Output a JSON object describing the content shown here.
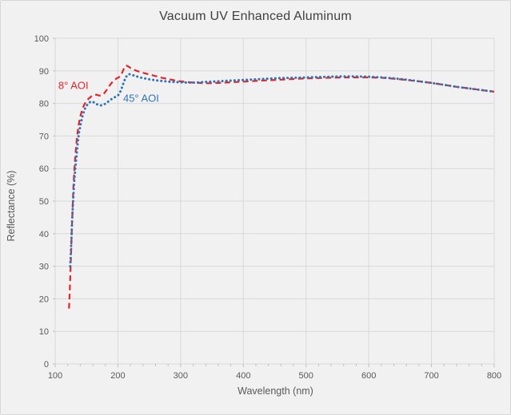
{
  "window": {
    "background": "#f1f1f2",
    "border_color": "#d7d7d7",
    "gridline_color": "#d9d9d9",
    "tick_color": "#bfbfbf",
    "title_color": "#404040",
    "label_color": "#595959"
  },
  "chart_data": {
    "type": "line",
    "title": "Vacuum UV Enhanced Aluminum",
    "xlabel": "Wavelength (nm)",
    "ylabel": "Reflectance (%)",
    "xlim": [
      100,
      800
    ],
    "ylim": [
      0,
      100
    ],
    "x_ticks": [
      100,
      200,
      300,
      400,
      500,
      600,
      700,
      800
    ],
    "x_minor_tick_step": 20,
    "y_ticks": [
      0,
      10,
      20,
      30,
      40,
      50,
      60,
      70,
      80,
      90,
      100
    ],
    "grid": true,
    "legend_position": "inline-annotations",
    "series": [
      {
        "name": "8° AOI",
        "color": "#e3242b",
        "line_style": "dashed",
        "label_anchor": {
          "x": 129,
          "y": 85.5
        },
        "points": [
          [
            122,
            17
          ],
          [
            123,
            21
          ],
          [
            124,
            26
          ],
          [
            125,
            32
          ],
          [
            126,
            38
          ],
          [
            127,
            44
          ],
          [
            128,
            49
          ],
          [
            129,
            54
          ],
          [
            131,
            61
          ],
          [
            133,
            66
          ],
          [
            135,
            70
          ],
          [
            137,
            73
          ],
          [
            140,
            76
          ],
          [
            143,
            78
          ],
          [
            146,
            79.5
          ],
          [
            150,
            80.8
          ],
          [
            154,
            81.6
          ],
          [
            158,
            82.2
          ],
          [
            162,
            82.6
          ],
          [
            166,
            82.7
          ],
          [
            170,
            82.4
          ],
          [
            174,
            82.5
          ],
          [
            178,
            83.1
          ],
          [
            182,
            84.1
          ],
          [
            186,
            85.3
          ],
          [
            190,
            86.3
          ],
          [
            194,
            87.1
          ],
          [
            198,
            87.7
          ],
          [
            202,
            88.1
          ],
          [
            205,
            88.6
          ],
          [
            208,
            90.0
          ],
          [
            211,
            91.4
          ],
          [
            214,
            91.6
          ],
          [
            217,
            91.3
          ],
          [
            220,
            90.9
          ],
          [
            225,
            90.4
          ],
          [
            230,
            90.0
          ],
          [
            235,
            89.7
          ],
          [
            240,
            89.4
          ],
          [
            250,
            88.9
          ],
          [
            260,
            88.4
          ],
          [
            270,
            87.9
          ],
          [
            280,
            87.5
          ],
          [
            290,
            87.1
          ],
          [
            300,
            86.8
          ],
          [
            310,
            86.6
          ],
          [
            320,
            86.4
          ],
          [
            330,
            86.3
          ],
          [
            340,
            86.2
          ],
          [
            350,
            86.2
          ],
          [
            360,
            86.3
          ],
          [
            370,
            86.4
          ],
          [
            380,
            86.5
          ],
          [
            390,
            86.6
          ],
          [
            400,
            86.7
          ],
          [
            420,
            86.9
          ],
          [
            440,
            87.1
          ],
          [
            460,
            87.3
          ],
          [
            480,
            87.5
          ],
          [
            500,
            87.7
          ],
          [
            520,
            87.8
          ],
          [
            540,
            87.9
          ],
          [
            560,
            88.0
          ],
          [
            580,
            88.0
          ],
          [
            600,
            88.0
          ],
          [
            620,
            87.9
          ],
          [
            640,
            87.6
          ],
          [
            660,
            87.2
          ],
          [
            680,
            86.8
          ],
          [
            700,
            86.3
          ],
          [
            720,
            85.7
          ],
          [
            740,
            85.1
          ],
          [
            760,
            84.6
          ],
          [
            780,
            84.1
          ],
          [
            800,
            83.6
          ]
        ]
      },
      {
        "name": "45° AOI",
        "color": "#2e75b6",
        "line_style": "dotted",
        "label_anchor": {
          "x": 237,
          "y": 81.5
        },
        "points": [
          [
            124,
            30
          ],
          [
            125,
            34
          ],
          [
            126,
            39
          ],
          [
            127,
            44
          ],
          [
            128,
            48
          ],
          [
            130,
            55
          ],
          [
            132,
            60
          ],
          [
            134,
            64
          ],
          [
            136,
            68
          ],
          [
            138,
            71
          ],
          [
            141,
            74
          ],
          [
            144,
            76.5
          ],
          [
            147,
            78.2
          ],
          [
            150,
            79.3
          ],
          [
            153,
            80.0
          ],
          [
            156,
            80.5
          ],
          [
            159,
            80.6
          ],
          [
            162,
            80.3
          ],
          [
            165,
            79.9
          ],
          [
            168,
            79.6
          ],
          [
            171,
            79.4
          ],
          [
            174,
            79.4
          ],
          [
            177,
            79.6
          ],
          [
            180,
            79.9
          ],
          [
            184,
            80.5
          ],
          [
            188,
            81.1
          ],
          [
            192,
            81.6
          ],
          [
            196,
            82.0
          ],
          [
            200,
            82.4
          ],
          [
            203,
            83.2
          ],
          [
            206,
            84.6
          ],
          [
            209,
            86.3
          ],
          [
            212,
            87.8
          ],
          [
            215,
            88.7
          ],
          [
            218,
            89.0
          ],
          [
            221,
            88.9
          ],
          [
            225,
            88.6
          ],
          [
            230,
            88.3
          ],
          [
            235,
            88.0
          ],
          [
            240,
            87.8
          ],
          [
            250,
            87.4
          ],
          [
            260,
            87.1
          ],
          [
            270,
            86.9
          ],
          [
            280,
            86.7
          ],
          [
            290,
            86.6
          ],
          [
            300,
            86.5
          ],
          [
            310,
            86.4
          ],
          [
            320,
            86.4
          ],
          [
            330,
            86.5
          ],
          [
            340,
            86.6
          ],
          [
            350,
            86.7
          ],
          [
            360,
            86.8
          ],
          [
            370,
            86.9
          ],
          [
            380,
            87.0
          ],
          [
            390,
            87.1
          ],
          [
            400,
            87.2
          ],
          [
            420,
            87.4
          ],
          [
            440,
            87.6
          ],
          [
            460,
            87.8
          ],
          [
            480,
            87.9
          ],
          [
            500,
            88.0
          ],
          [
            520,
            88.1
          ],
          [
            540,
            88.2
          ],
          [
            560,
            88.3
          ],
          [
            580,
            88.3
          ],
          [
            600,
            88.2
          ],
          [
            620,
            88.0
          ],
          [
            640,
            87.7
          ],
          [
            660,
            87.3
          ],
          [
            680,
            86.8
          ],
          [
            700,
            86.3
          ],
          [
            720,
            85.7
          ],
          [
            740,
            85.1
          ],
          [
            760,
            84.6
          ],
          [
            780,
            84.1
          ],
          [
            800,
            83.6
          ]
        ]
      }
    ]
  }
}
